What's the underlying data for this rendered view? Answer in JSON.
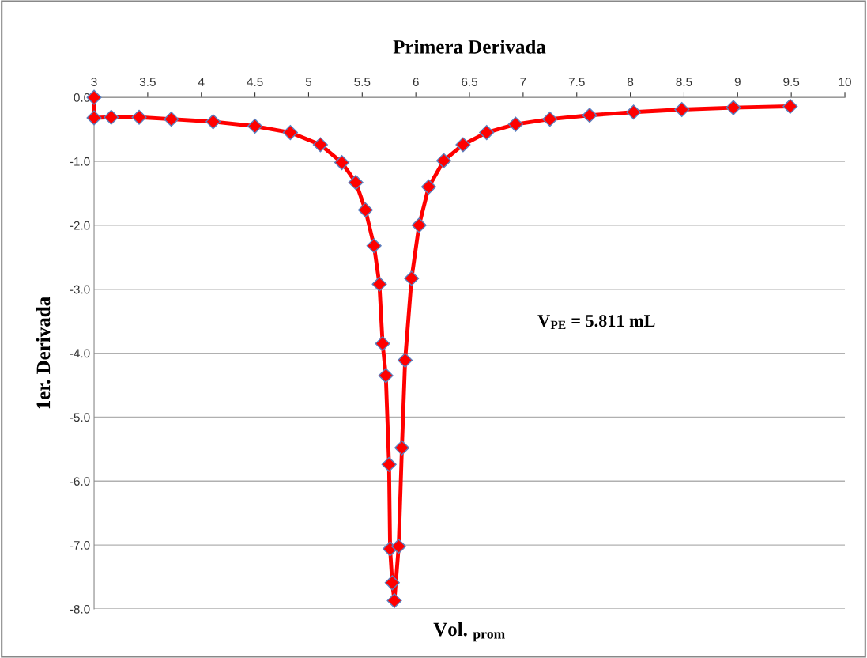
{
  "chart_data": {
    "type": "line",
    "title": "Primera Derivada",
    "xlabel": "Vol. $_{prom}$",
    "ylabel": "1er. Derivada",
    "annotations": [
      "V$_{PE}$ = 5.811 mL"
    ],
    "x": [
      3,
      3,
      3.16,
      3.42,
      3.72,
      4.11,
      4.5,
      4.83,
      5.11,
      5.31,
      5.44,
      5.53,
      5.61,
      5.66,
      5.69,
      5.72,
      5.75,
      5.76,
      5.78,
      5.8,
      5.84,
      5.87,
      5.9,
      5.96,
      6.03,
      6.12,
      6.26,
      6.44,
      6.66,
      6.93,
      7.25,
      7.62,
      8.03,
      8.48,
      8.96,
      9.49
    ],
    "series": [
      {
        "color": "#ff0000",
        "values": [
          0,
          -0.32,
          -0.31,
          -0.31,
          -0.34,
          -0.38,
          -0.45,
          -0.55,
          -0.74,
          -1.02,
          -1.33,
          -1.76,
          -2.32,
          -2.92,
          -3.85,
          -4.35,
          -5.74,
          -7.06,
          -7.59,
          -7.87,
          -7.02,
          -5.48,
          -4.11,
          -2.83,
          -2.0,
          -1.4,
          -0.99,
          -0.74,
          -0.55,
          -0.42,
          -0.34,
          -0.28,
          -0.23,
          -0.19,
          -0.16,
          -0.14
        ]
      }
    ],
    "xlim": [
      3,
      10
    ],
    "ylim": [
      -8,
      0
    ],
    "xticks": [
      3,
      3.5,
      4,
      4.5,
      5,
      5.5,
      6,
      6.5,
      7,
      7.5,
      8,
      8.5,
      9,
      9.5,
      10
    ],
    "yticks": [
      {
        "value": 0,
        "label": "0.0"
      },
      {
        "value": -1,
        "label": "-1.0"
      },
      {
        "value": -2,
        "label": "-2.0"
      },
      {
        "value": -3,
        "label": "-3.0"
      },
      {
        "value": -4,
        "label": "-4.0"
      },
      {
        "value": -5,
        "label": "-5.0"
      },
      {
        "value": -6,
        "label": "-6.0"
      },
      {
        "value": -7,
        "label": "-7.0"
      },
      {
        "value": -8,
        "label": "-8.0"
      }
    ],
    "grid": "y",
    "marker": "diamond",
    "line_style": "solid"
  }
}
